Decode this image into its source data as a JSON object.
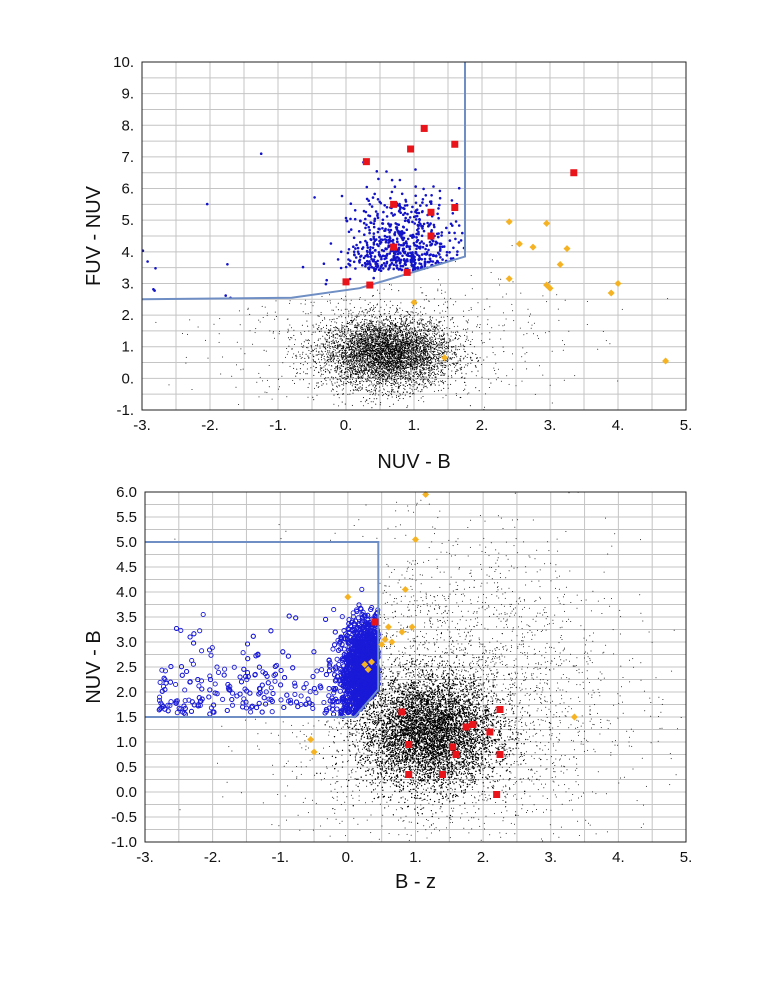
{
  "chart_data": [
    {
      "type": "scatter",
      "title": "",
      "xlabel": "NUV - B",
      "ylabel": "FUV - NUV",
      "xlim": [
        -3,
        5
      ],
      "ylim": [
        -1,
        10
      ],
      "xticks": [
        -3,
        -2,
        -1,
        0,
        1,
        2,
        3,
        4,
        5
      ],
      "xtick_labels": [
        "-3.",
        "-2.",
        "-1.",
        "0.",
        "1.",
        "2.",
        "3.",
        "4.",
        "5."
      ],
      "yticks": [
        -1,
        0,
        1,
        2,
        3,
        4,
        5,
        6,
        7,
        8,
        9,
        10
      ],
      "ytick_labels": [
        "-1.",
        "0.",
        "1.",
        "2.",
        "3.",
        "4.",
        "5.",
        "6.",
        "7.",
        "8.",
        "9.",
        "10."
      ],
      "grid": true,
      "legend": "none",
      "selection_boundary": [
        [
          -3,
          2.5
        ],
        [
          -0.8,
          2.55
        ],
        [
          0.2,
          2.85
        ],
        [
          1.75,
          3.85
        ],
        [
          1.75,
          10
        ]
      ],
      "series": [
        {
          "marker": "square",
          "color": "#e8141a",
          "points": [
            [
              0.3,
              6.85
            ],
            [
              0.95,
              7.25
            ],
            [
              1.15,
              7.9
            ],
            [
              1.6,
              7.4
            ],
            [
              3.35,
              6.5
            ],
            [
              0.7,
              5.5
            ],
            [
              1.25,
              5.25
            ],
            [
              1.6,
              5.4
            ],
            [
              0.7,
              4.15
            ],
            [
              1.25,
              4.5
            ],
            [
              0.9,
              3.35
            ],
            [
              0.35,
              2.95
            ],
            [
              0.0,
              3.05
            ]
          ]
        },
        {
          "marker": "diamond",
          "color": "#f5b323",
          "points": [
            [
              2.4,
              4.95
            ],
            [
              2.55,
              4.25
            ],
            [
              2.75,
              4.15
            ],
            [
              2.95,
              4.9
            ],
            [
              3.25,
              4.1
            ],
            [
              3.15,
              3.6
            ],
            [
              2.4,
              3.15
            ],
            [
              2.95,
              2.95
            ],
            [
              3.0,
              2.85
            ],
            [
              3.9,
              2.7
            ],
            [
              4.0,
              3.0
            ],
            [
              4.7,
              0.55
            ],
            [
              1.45,
              0.65
            ],
            [
              1.0,
              2.4
            ]
          ]
        },
        {
          "marker": "dot",
          "color": "#1212c8",
          "points": "selected population above the boundary, densest at NUV-B 0 to 1.7 and FUV-NUV 2.9 to 6"
        },
        {
          "marker": "dot",
          "color": "#000000",
          "points": "general population centred near NUV-B 0.6, FUV-NUV 0.8"
        }
      ]
    },
    {
      "type": "scatter",
      "title": "",
      "xlabel": "B - z",
      "ylabel": "NUV - B",
      "xlim": [
        -3,
        5
      ],
      "ylim": [
        -1,
        6
      ],
      "xticks": [
        -3,
        -2,
        -1,
        0,
        1,
        2,
        3,
        4,
        5
      ],
      "xtick_labels": [
        "-3.",
        "-2.",
        "-1.",
        "0.",
        "1.",
        "2.",
        "3.",
        "4.",
        "5."
      ],
      "yticks": [
        -1,
        -0.5,
        0,
        0.5,
        1,
        1.5,
        2,
        2.5,
        3,
        3.5,
        4,
        4.5,
        5,
        5.5,
        6
      ],
      "ytick_labels": [
        "-1.0",
        "-0.5",
        "0.0",
        "0.5",
        "1.0",
        "1.5",
        "2.0",
        "2.5",
        "3.0",
        "3.5",
        "4.0",
        "4.5",
        "5.0",
        "5.5",
        "6.0"
      ],
      "grid": true,
      "legend": "none",
      "selection_boundary": [
        [
          -3,
          5.0
        ],
        [
          0.45,
          5.0
        ],
        [
          0.45,
          2.05
        ],
        [
          0.1,
          1.5
        ],
        [
          -3,
          1.5
        ]
      ],
      "series": [
        {
          "marker": "square",
          "color": "#e8141a",
          "points": [
            [
              0.8,
              1.6
            ],
            [
              0.9,
              0.95
            ],
            [
              0.9,
              0.35
            ],
            [
              1.4,
              0.35
            ],
            [
              1.55,
              0.9
            ],
            [
              1.6,
              0.75
            ],
            [
              1.75,
              1.3
            ],
            [
              1.85,
              1.35
            ],
            [
              2.1,
              1.2
            ],
            [
              2.25,
              1.65
            ],
            [
              2.25,
              0.75
            ],
            [
              2.2,
              -0.05
            ],
            [
              0.4,
              3.4
            ]
          ]
        },
        {
          "marker": "diamond",
          "color": "#f5b323",
          "points": [
            [
              1.15,
              5.95
            ],
            [
              1.0,
              5.05
            ],
            [
              0.85,
              4.05
            ],
            [
              0.0,
              3.9
            ],
            [
              0.6,
              3.3
            ],
            [
              0.8,
              3.2
            ],
            [
              0.95,
              3.3
            ],
            [
              0.55,
              3.05
            ],
            [
              0.5,
              2.95
            ],
            [
              0.65,
              3.0
            ],
            [
              0.25,
              2.55
            ],
            [
              0.3,
              2.45
            ],
            [
              0.35,
              2.6
            ],
            [
              -0.55,
              1.05
            ],
            [
              -0.5,
              0.8
            ],
            [
              3.35,
              1.5
            ]
          ]
        },
        {
          "marker": "circle",
          "color": "#1a1ad8",
          "points": "selected population inside the boundary, densest near B-z 0.3, NUV-B 2.5"
        },
        {
          "marker": "dot",
          "color": "#000000",
          "points": "general population centred near B-z 1.2, NUV-B 1.2"
        }
      ]
    }
  ]
}
